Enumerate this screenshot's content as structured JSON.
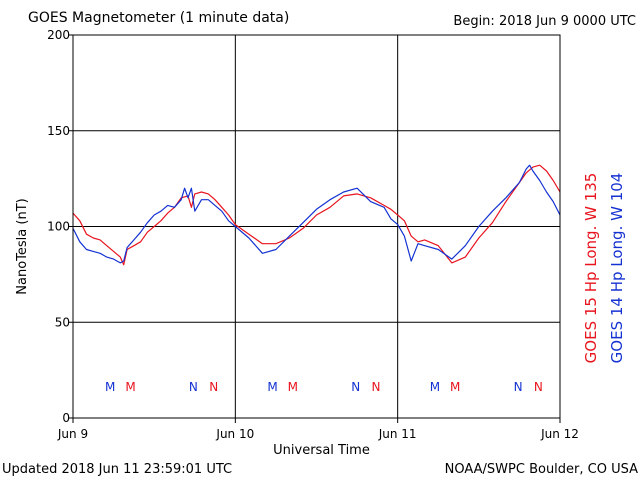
{
  "header": {
    "title": "GOES Magnetometer (1 minute data)",
    "begin": "Begin:  2018 Jun 9 0000 UTC"
  },
  "footer": {
    "updated": "Updated 2018 Jun 11 23:59:01 UTC",
    "credit": "NOAA/SWPC Boulder, CO USA"
  },
  "chart_data": {
    "type": "line",
    "title": "GOES Magnetometer (1 minute data)",
    "xlabel": "Universal Time",
    "ylabel": "NanoTesla (nT)",
    "ylim": [
      0,
      200
    ],
    "yticks": [
      0,
      50,
      100,
      150,
      200
    ],
    "xlim": [
      0,
      72
    ],
    "x_unit": "hours since 2018 Jun 9 0000 UTC",
    "xticks": [
      {
        "x": 0,
        "label": "Jun 9"
      },
      {
        "x": 24,
        "label": "Jun 10"
      },
      {
        "x": 48,
        "label": "Jun 11"
      },
      {
        "x": 72,
        "label": "Jun 12"
      }
    ],
    "grid": true,
    "series": [
      {
        "name": "GOES 15 Hp  Long. W 135",
        "color": "#e8141e",
        "x": [
          0,
          1,
          2,
          3,
          4,
          5,
          6,
          7,
          7.5,
          8,
          9,
          10,
          11,
          12,
          13,
          14,
          15,
          16,
          17,
          17.5,
          18,
          19,
          20,
          21,
          22,
          23,
          24,
          26,
          28,
          30,
          32,
          34,
          36,
          38,
          40,
          42,
          44,
          46,
          47,
          48,
          49,
          50,
          51,
          52,
          54,
          56,
          58,
          60,
          62,
          64,
          66,
          67,
          68,
          69,
          70,
          71,
          72
        ],
        "y": [
          107,
          103,
          96,
          94,
          93,
          90,
          87,
          84,
          80,
          88,
          90,
          92,
          97,
          100,
          103,
          107,
          110,
          115,
          116,
          110,
          117,
          118,
          117,
          114,
          110,
          106,
          101,
          96,
          91,
          91,
          94,
          99,
          106,
          110,
          116,
          117,
          115,
          111,
          109,
          106,
          103,
          95,
          92,
          93,
          90,
          81,
          84,
          94,
          102,
          113,
          123,
          128,
          131,
          132,
          129,
          124,
          118
        ]
      },
      {
        "name": "GOES 14 Hp  Long. W 104",
        "color": "#1432d2",
        "x": [
          0,
          1,
          2,
          3,
          4,
          5,
          6,
          7,
          7.5,
          8,
          9,
          10,
          11,
          12,
          13,
          14,
          15,
          16,
          16.5,
          17,
          17.5,
          18,
          19,
          20,
          21,
          22,
          23,
          24,
          26,
          28,
          30,
          32,
          34,
          36,
          38,
          40,
          42,
          44,
          46,
          47,
          48,
          49,
          50,
          51,
          52,
          54,
          56,
          58,
          60,
          62,
          64,
          66,
          67,
          67.5,
          68,
          69,
          70,
          71,
          72
        ],
        "y": [
          99,
          92,
          88,
          87,
          86,
          84,
          83,
          81,
          82,
          89,
          93,
          97,
          102,
          106,
          108,
          111,
          110,
          114,
          120,
          115,
          120,
          108,
          114,
          114,
          111,
          108,
          103,
          100,
          94,
          86,
          88,
          95,
          102,
          109,
          114,
          118,
          120,
          113,
          110,
          104,
          101,
          95,
          82,
          91,
          90,
          88,
          83,
          90,
          100,
          108,
          115,
          123,
          130,
          132,
          129,
          124,
          118,
          113,
          106
        ]
      }
    ],
    "annotations": [
      {
        "text": "M",
        "x": 5.5,
        "series": 1
      },
      {
        "text": "M",
        "x": 8.5,
        "series": 0
      },
      {
        "text": "N",
        "x": 17.8,
        "series": 1
      },
      {
        "text": "N",
        "x": 20.8,
        "series": 0
      },
      {
        "text": "M",
        "x": 29.5,
        "series": 1
      },
      {
        "text": "M",
        "x": 32.5,
        "series": 0
      },
      {
        "text": "N",
        "x": 41.8,
        "series": 1
      },
      {
        "text": "N",
        "x": 44.8,
        "series": 0
      },
      {
        "text": "M",
        "x": 53.5,
        "series": 1
      },
      {
        "text": "M",
        "x": 56.5,
        "series": 0
      },
      {
        "text": "N",
        "x": 65.8,
        "series": 1
      },
      {
        "text": "N",
        "x": 68.8,
        "series": 0
      }
    ]
  }
}
